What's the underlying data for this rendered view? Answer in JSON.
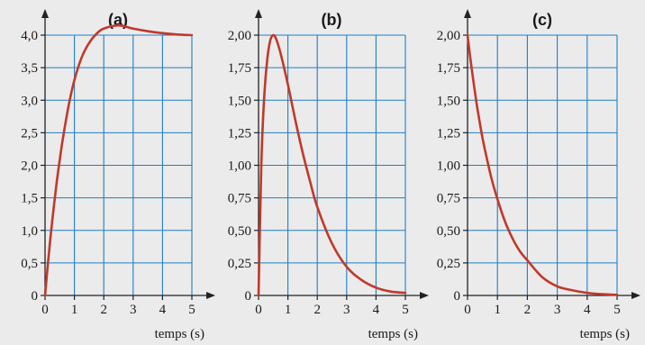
{
  "chart_data": [
    {
      "type": "line",
      "title": "(a)",
      "xlabel": "temps (s)",
      "ylabel": "",
      "xlim": [
        0,
        5
      ],
      "ylim": [
        0,
        4
      ],
      "x_ticks": [
        "0",
        "1",
        "2",
        "3",
        "4",
        "5"
      ],
      "y_ticks": [
        "0",
        "0,5",
        "1,0",
        "1,5",
        "2,0",
        "2,5",
        "3,0",
        "3,5",
        "4,0"
      ],
      "grid": true,
      "series": [
        {
          "color": "#c0392b",
          "x": [
            0,
            0.1,
            0.2,
            0.3,
            0.4,
            0.5,
            0.6,
            0.8,
            1.0,
            1.25,
            1.5,
            1.75,
            2.0,
            2.5,
            3.0,
            3.5,
            4.0,
            4.5,
            5.0
          ],
          "y": [
            0,
            0.5,
            0.96,
            1.37,
            1.75,
            2.08,
            2.39,
            2.91,
            3.31,
            3.66,
            3.88,
            4.02,
            4.1,
            4.15,
            4.1,
            4.06,
            4.03,
            4.01,
            4.0
          ]
        }
      ]
    },
    {
      "type": "line",
      "title": "(b)",
      "xlabel": "temps (s)",
      "ylabel": "",
      "xlim": [
        0,
        5
      ],
      "ylim": [
        0,
        2
      ],
      "x_ticks": [
        "0",
        "1",
        "2",
        "3",
        "4",
        "5"
      ],
      "y_ticks": [
        "0",
        "0,25",
        "0,50",
        "0,75",
        "1,00",
        "1,25",
        "1,50",
        "1,75",
        "2,00"
      ],
      "grid": true,
      "series": [
        {
          "color": "#c0392b",
          "x": [
            0,
            0.1,
            0.2,
            0.3,
            0.4,
            0.5,
            0.6,
            0.75,
            1.0,
            1.25,
            1.5,
            1.75,
            2.0,
            2.5,
            3.0,
            3.5,
            4.0,
            4.5,
            5.0
          ],
          "y": [
            0,
            1.05,
            1.55,
            1.82,
            1.96,
            2.0,
            1.97,
            1.86,
            1.62,
            1.35,
            1.1,
            0.88,
            0.68,
            0.4,
            0.22,
            0.12,
            0.06,
            0.03,
            0.02
          ]
        }
      ]
    },
    {
      "type": "line",
      "title": "(c)",
      "xlabel": "temps (s)",
      "ylabel": "",
      "xlim": [
        0,
        5
      ],
      "ylim": [
        0,
        2
      ],
      "x_ticks": [
        "0",
        "1",
        "2",
        "3",
        "4",
        "5"
      ],
      "y_ticks": [
        "0",
        "0,25",
        "0,50",
        "0,75",
        "1,00",
        "1,25",
        "1,50",
        "1,75",
        "2,00"
      ],
      "grid": true,
      "series": [
        {
          "color": "#c0392b",
          "x": [
            0,
            0.1,
            0.2,
            0.3,
            0.4,
            0.5,
            0.6,
            0.8,
            1.0,
            1.25,
            1.5,
            1.75,
            2.0,
            2.5,
            3.0,
            3.5,
            4.0,
            4.5,
            5.0
          ],
          "y": [
            2.0,
            1.81,
            1.64,
            1.48,
            1.34,
            1.21,
            1.1,
            0.9,
            0.74,
            0.57,
            0.44,
            0.34,
            0.27,
            0.14,
            0.07,
            0.04,
            0.02,
            0.01,
            0.005
          ]
        }
      ]
    }
  ]
}
